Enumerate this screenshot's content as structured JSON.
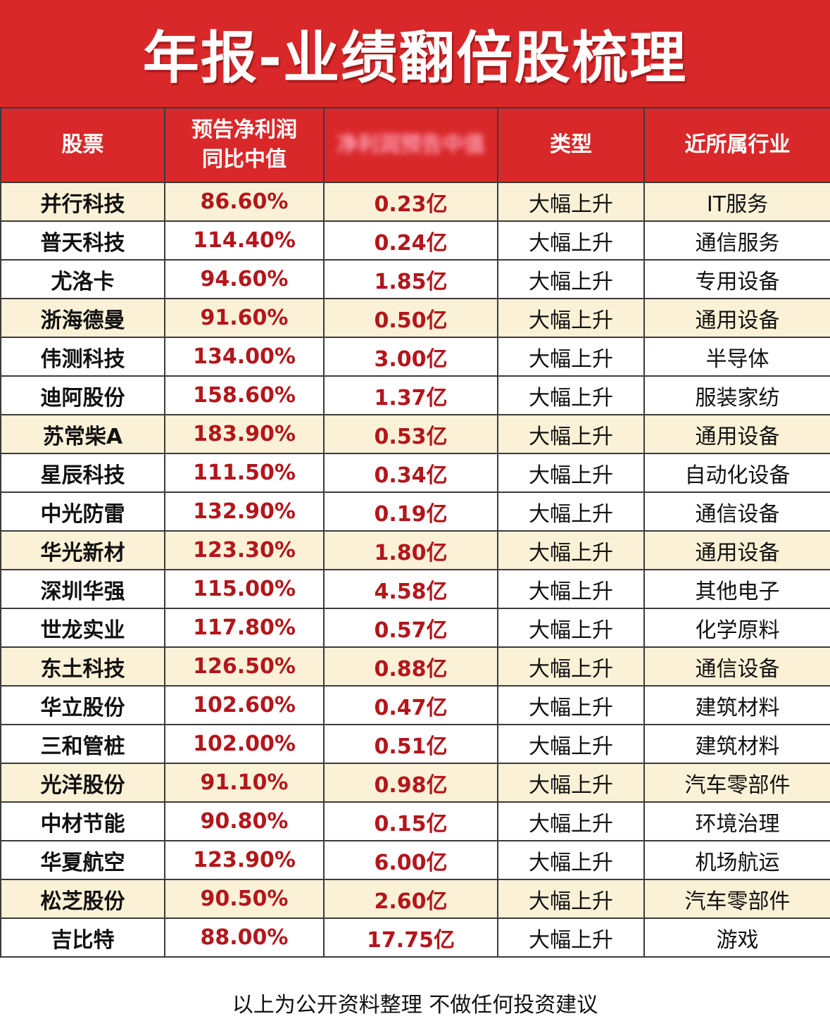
{
  "title": "年报-业绩翻倍股梳理",
  "headers": {
    "stock": "股票",
    "growth_line1": "预告净利润",
    "growth_line2": "同比中值",
    "blurred": "净利润预告中值",
    "type": "类型",
    "industry": "近所属行业"
  },
  "rows": [
    {
      "name": "并行科技",
      "growth": "86.60%",
      "amount": "0.23亿",
      "type": "大幅上升",
      "industry": "IT服务"
    },
    {
      "name": "普天科技",
      "growth": "114.40%",
      "amount": "0.24亿",
      "type": "大幅上升",
      "industry": "通信服务"
    },
    {
      "name": "尤洛卡",
      "growth": "94.60%",
      "amount": "1.85亿",
      "type": "大幅上升",
      "industry": "专用设备"
    },
    {
      "name": "浙海德曼",
      "growth": "91.60%",
      "amount": "0.50亿",
      "type": "大幅上升",
      "industry": "通用设备"
    },
    {
      "name": "伟测科技",
      "growth": "134.00%",
      "amount": "3.00亿",
      "type": "大幅上升",
      "industry": "半导体"
    },
    {
      "name": "迪阿股份",
      "growth": "158.60%",
      "amount": "1.37亿",
      "type": "大幅上升",
      "industry": "服装家纺"
    },
    {
      "name": "苏常柴A",
      "growth": "183.90%",
      "amount": "0.53亿",
      "type": "大幅上升",
      "industry": "通用设备"
    },
    {
      "name": "星辰科技",
      "growth": "111.50%",
      "amount": "0.34亿",
      "type": "大幅上升",
      "industry": "自动化设备"
    },
    {
      "name": "中光防雷",
      "growth": "132.90%",
      "amount": "0.19亿",
      "type": "大幅上升",
      "industry": "通信设备"
    },
    {
      "name": "华光新材",
      "growth": "123.30%",
      "amount": "1.80亿",
      "type": "大幅上升",
      "industry": "通用设备"
    },
    {
      "name": "深圳华强",
      "growth": "115.00%",
      "amount": "4.58亿",
      "type": "大幅上升",
      "industry": "其他电子"
    },
    {
      "name": "世龙实业",
      "growth": "117.80%",
      "amount": "0.57亿",
      "type": "大幅上升",
      "industry": "化学原料"
    },
    {
      "name": "东土科技",
      "growth": "126.50%",
      "amount": "0.88亿",
      "type": "大幅上升",
      "industry": "通信设备"
    },
    {
      "name": "华立股份",
      "growth": "102.60%",
      "amount": "0.47亿",
      "type": "大幅上升",
      "industry": "建筑材料"
    },
    {
      "name": "三和管桩",
      "growth": "102.00%",
      "amount": "0.51亿",
      "type": "大幅上升",
      "industry": "建筑材料"
    },
    {
      "name": "光洋股份",
      "growth": "91.10%",
      "amount": "0.98亿",
      "type": "大幅上升",
      "industry": "汽车零部件"
    },
    {
      "name": "中材节能",
      "growth": "90.80%",
      "amount": "0.15亿",
      "type": "大幅上升",
      "industry": "环境治理"
    },
    {
      "name": "华夏航空",
      "growth": "123.90%",
      "amount": "6.00亿",
      "type": "大幅上升",
      "industry": "机场航运"
    },
    {
      "name": "松芝股份",
      "growth": "90.50%",
      "amount": "2.60亿",
      "type": "大幅上升",
      "industry": "汽车零部件"
    },
    {
      "name": "吉比特",
      "growth": "88.00%",
      "amount": "17.75亿",
      "type": "大幅上升",
      "industry": "游戏"
    }
  ],
  "footer": "以上为公开资料整理 不做任何投资建议",
  "colors": {
    "header_red": "#d9282a",
    "value_red": "#b3161b",
    "stripe_cream": "#fbf1d6"
  }
}
